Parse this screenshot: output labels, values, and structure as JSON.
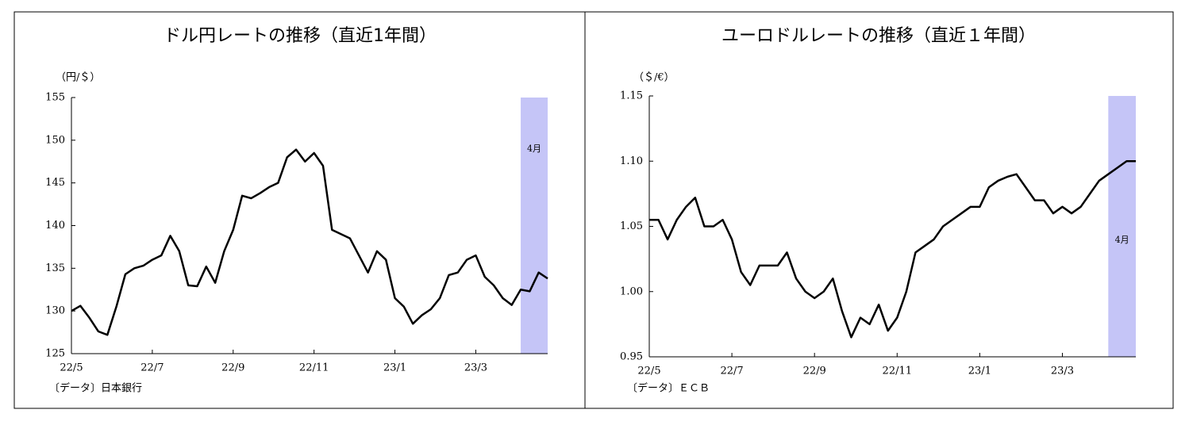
{
  "chart_data": [
    {
      "type": "line",
      "title": "ドル円レートの推移（直近1年間）",
      "y_label": "（円/＄）",
      "source": "〔データ〕日本銀行",
      "categories": [
        "22/5",
        null,
        null,
        null,
        null,
        null,
        null,
        null,
        null,
        "22/7",
        null,
        null,
        null,
        null,
        null,
        null,
        null,
        null,
        "22/9",
        null,
        null,
        null,
        null,
        null,
        null,
        null,
        null,
        "22/11",
        null,
        null,
        null,
        null,
        null,
        null,
        null,
        null,
        "23/1",
        null,
        null,
        null,
        null,
        null,
        null,
        null,
        null,
        "23/3",
        null,
        null,
        null,
        null,
        null,
        null,
        null,
        null
      ],
      "values": [
        130.0,
        130.6,
        129.2,
        127.6,
        127.2,
        130.5,
        134.3,
        135.0,
        135.3,
        136.0,
        136.5,
        138.8,
        137.0,
        133.0,
        132.9,
        135.2,
        133.3,
        137.0,
        139.5,
        143.5,
        143.2,
        143.8,
        144.5,
        145.0,
        148.0,
        148.9,
        147.5,
        148.5,
        147.0,
        139.5,
        139.0,
        138.5,
        136.5,
        134.5,
        137.0,
        136.0,
        131.5,
        130.5,
        128.5,
        129.5,
        130.2,
        131.5,
        134.2,
        134.5,
        136.0,
        136.5,
        134.0,
        133.0,
        131.5,
        130.7,
        132.5,
        132.3,
        134.5,
        133.8
      ],
      "color": "#000000",
      "ylim": [
        125,
        155
      ],
      "yticks": [
        125,
        130,
        135,
        140,
        145,
        150,
        155
      ],
      "highlight": {
        "label": "4月",
        "from": 50,
        "color": "#c5c5f7"
      }
    },
    {
      "type": "line",
      "title": "ユーロドルレートの推移（直近１年間）",
      "y_label": "（＄/€）",
      "source": "〔データ〕ＥＣＢ",
      "categories": [
        "22/5",
        null,
        null,
        null,
        null,
        null,
        null,
        null,
        null,
        "22/7",
        null,
        null,
        null,
        null,
        null,
        null,
        null,
        null,
        "22/9",
        null,
        null,
        null,
        null,
        null,
        null,
        null,
        null,
        "22/11",
        null,
        null,
        null,
        null,
        null,
        null,
        null,
        null,
        "23/1",
        null,
        null,
        null,
        null,
        null,
        null,
        null,
        null,
        "23/3",
        null,
        null,
        null,
        null,
        null,
        null,
        null,
        null
      ],
      "values": [
        1.055,
        1.055,
        1.04,
        1.055,
        1.065,
        1.072,
        1.05,
        1.05,
        1.055,
        1.04,
        1.015,
        1.005,
        1.02,
        1.02,
        1.02,
        1.03,
        1.01,
        1.0,
        0.995,
        1.0,
        1.01,
        0.985,
        0.965,
        0.98,
        0.975,
        0.99,
        0.97,
        0.98,
        1.0,
        1.03,
        1.035,
        1.04,
        1.05,
        1.055,
        1.06,
        1.065,
        1.065,
        1.08,
        1.085,
        1.088,
        1.09,
        1.08,
        1.07,
        1.07,
        1.06,
        1.065,
        1.06,
        1.065,
        1.075,
        1.085,
        1.09,
        1.095,
        1.1,
        1.1
      ],
      "color": "#000000",
      "ylim": [
        0.95,
        1.15
      ],
      "yticks": [
        0.95,
        {
          "value": 1,
          "label": "1.00"
        },
        1.05,
        {
          "value": 1.1,
          "label": "1.10"
        },
        1.15
      ],
      "highlight": {
        "label": "4月",
        "from": 50,
        "color": "#c5c5f7"
      }
    }
  ]
}
